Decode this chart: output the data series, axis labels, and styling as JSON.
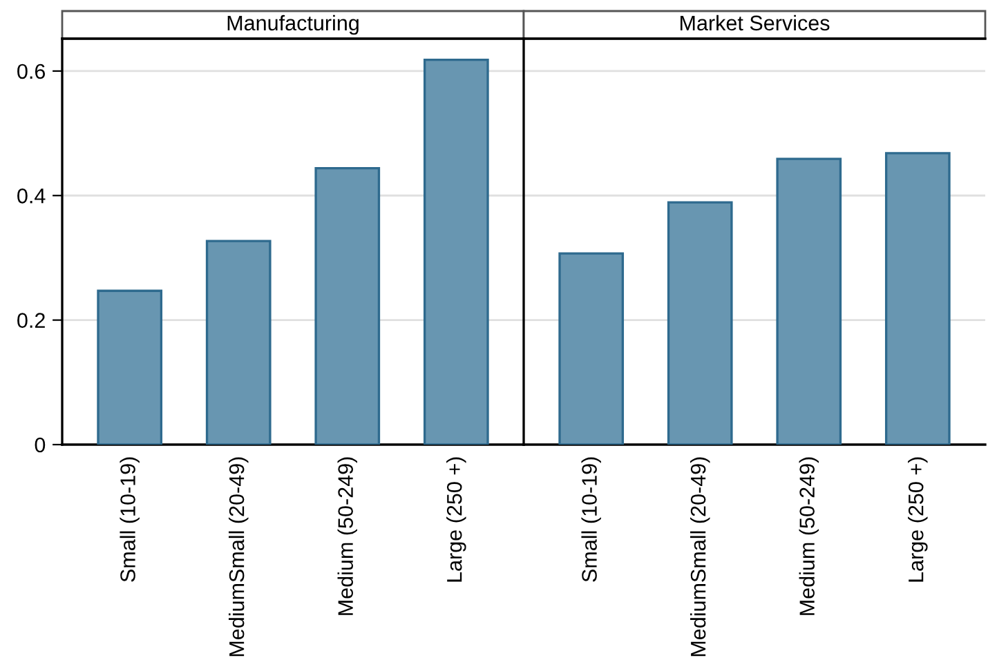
{
  "chart_data": [
    {
      "type": "bar",
      "title": "Manufacturing",
      "categories": [
        "Small (10-19)",
        "MediumSmall (20-49)",
        "Medium (50-249)",
        "Large (250 +)"
      ],
      "values": [
        0.247,
        0.327,
        0.444,
        0.618
      ],
      "color": "#6896b1",
      "ylim": [
        0,
        0.652
      ],
      "yticks": [
        0,
        0.2,
        0.4,
        0.6
      ],
      "grid": "y"
    },
    {
      "type": "bar",
      "title": "Market Services",
      "categories": [
        "Small (10-19)",
        "MediumSmall (20-49)",
        "Medium (50-249)",
        "Large (250 +)"
      ],
      "values": [
        0.307,
        0.389,
        0.459,
        0.468
      ],
      "color": "#6896b1",
      "ylim": [
        0,
        0.652
      ],
      "yticks": [
        0,
        0.2,
        0.4,
        0.6
      ],
      "grid": "y",
      "tick_labels": "x"
    }
  ]
}
